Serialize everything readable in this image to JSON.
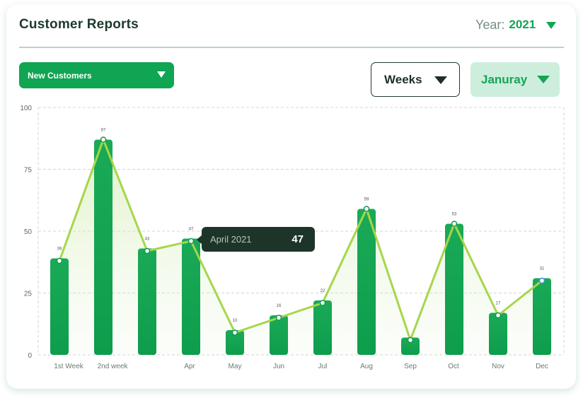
{
  "header": {
    "title": "Customer Reports",
    "year_label": "Year:",
    "year_value": "2021"
  },
  "filters": {
    "metric": "New Customers",
    "period": "Weeks",
    "month": "Januray"
  },
  "tooltip": {
    "label": "April 2021",
    "value": "47"
  },
  "colors": {
    "bar": "#13a552",
    "line": "#a6d64a",
    "grid": "#d4d4d4",
    "tooltip_bg": "#1c3528"
  },
  "chart_data": {
    "type": "bar",
    "overlay": "line",
    "categories": [
      "1st Week",
      "2nd week",
      "",
      "Apr",
      "May",
      "Jun",
      "Jul",
      "Aug",
      "Sep",
      "Oct",
      "Nov",
      "Dec"
    ],
    "values": [
      39,
      87,
      43,
      47,
      10,
      16,
      22,
      59,
      7,
      53,
      17,
      31
    ],
    "line_values": [
      38,
      87,
      42,
      46,
      9,
      15,
      21,
      59,
      6,
      53,
      16,
      30
    ],
    "data_labels": [
      "39",
      "87",
      "43",
      "47",
      "10",
      "16",
      "22",
      "59",
      "",
      "53",
      "17",
      "31"
    ],
    "yticks": [
      "0",
      "25",
      "50",
      "75",
      "100"
    ],
    "ylim": [
      0,
      100
    ],
    "grid": true
  }
}
